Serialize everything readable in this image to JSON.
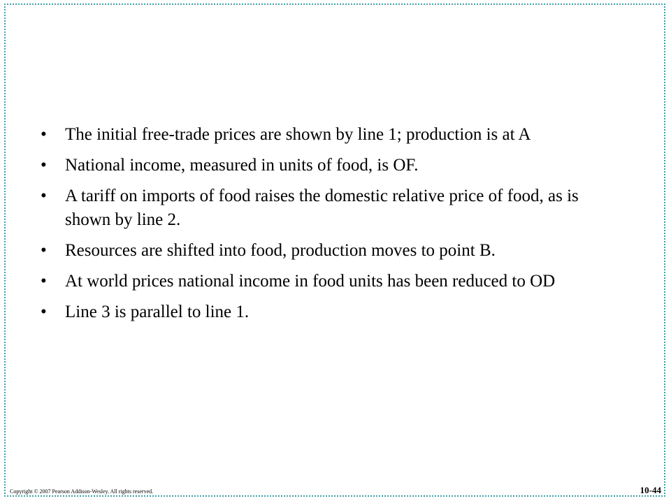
{
  "slide": {
    "bullets": [
      {
        "symbol": "•",
        "text": "The initial free-trade prices are shown by line 1; production is at A"
      },
      {
        "symbol": "•",
        "text": "National income, measured in units of food, is OF."
      },
      {
        "symbol": "•",
        "text": "A tariff on imports of food raises the domestic relative price of food, as is shown by line 2."
      },
      {
        "symbol": "•",
        "text": "Resources are shifted into food, production moves to point B."
      },
      {
        "symbol": "•",
        "text": "At world prices national income in food units has been reduced to OD"
      },
      {
        "symbol": "•",
        "text": "Line 3 is parallel to line 1."
      }
    ],
    "footer": {
      "copyright": "Copyright © 2007 Pearson Addison-Wesley. All rights reserved.",
      "slide_number": "10-44"
    },
    "colors": {
      "border": "#3fa0a8",
      "text": "#000000",
      "background": "#ffffff"
    }
  }
}
